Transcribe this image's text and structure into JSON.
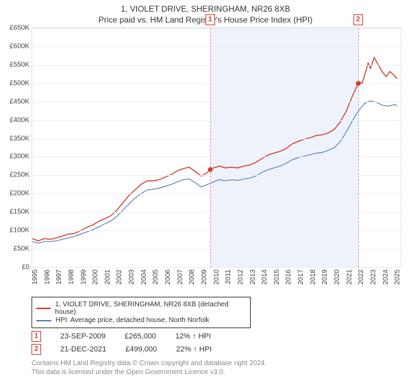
{
  "title": "1, VIOLET DRIVE, SHERINGHAM, NR26 8XB",
  "subtitle": "Price paid vs. HM Land Registry's House Price Index (HPI)",
  "chart": {
    "type": "line",
    "background_color": "#ffffff",
    "grid_color": "#eeeeee",
    "shade_color": "#eef3fb",
    "x_years": [
      1995,
      1996,
      1997,
      1998,
      1999,
      2000,
      2001,
      2002,
      2003,
      2004,
      2005,
      2006,
      2007,
      2008,
      2009,
      2010,
      2011,
      2012,
      2013,
      2014,
      2015,
      2016,
      2017,
      2018,
      2019,
      2020,
      2021,
      2022,
      2023,
      2024,
      2025
    ],
    "x_min": 1995,
    "x_max": 2025.5,
    "ylim": [
      0,
      650000
    ],
    "ytick_step": 50000,
    "ytick_labels": [
      "£0",
      "£50K",
      "£100K",
      "£150K",
      "£200K",
      "£250K",
      "£300K",
      "£350K",
      "£400K",
      "£450K",
      "£500K",
      "£550K",
      "£600K",
      "£650K"
    ],
    "series": [
      {
        "name": "price_paid",
        "label": "1, VIOLET DRIVE, SHERINGHAM, NR26 8XB (detached house)",
        "color": "#d43a2a",
        "line_width": 1.4,
        "points": [
          [
            1995,
            78000
          ],
          [
            1995.5,
            72000
          ],
          [
            1996,
            78000
          ],
          [
            1996.5,
            76000
          ],
          [
            1997,
            80000
          ],
          [
            1997.5,
            85000
          ],
          [
            1998,
            90000
          ],
          [
            1998.5,
            92000
          ],
          [
            1999,
            100000
          ],
          [
            1999.5,
            108000
          ],
          [
            2000,
            115000
          ],
          [
            2000.5,
            125000
          ],
          [
            2001,
            132000
          ],
          [
            2001.5,
            140000
          ],
          [
            2002,
            155000
          ],
          [
            2002.5,
            175000
          ],
          [
            2003,
            195000
          ],
          [
            2003.5,
            210000
          ],
          [
            2004,
            225000
          ],
          [
            2004.5,
            235000
          ],
          [
            2005,
            235000
          ],
          [
            2005.5,
            238000
          ],
          [
            2006,
            245000
          ],
          [
            2006.5,
            252000
          ],
          [
            2007,
            262000
          ],
          [
            2007.5,
            268000
          ],
          [
            2008,
            272000
          ],
          [
            2008.5,
            260000
          ],
          [
            2009,
            248000
          ],
          [
            2009.5,
            258000
          ],
          [
            2009.73,
            265000
          ],
          [
            2010,
            270000
          ],
          [
            2010.5,
            275000
          ],
          [
            2011,
            270000
          ],
          [
            2011.5,
            272000
          ],
          [
            2012,
            270000
          ],
          [
            2012.5,
            275000
          ],
          [
            2013,
            278000
          ],
          [
            2013.5,
            285000
          ],
          [
            2014,
            295000
          ],
          [
            2014.5,
            305000
          ],
          [
            2015,
            310000
          ],
          [
            2015.5,
            315000
          ],
          [
            2016,
            322000
          ],
          [
            2016.5,
            335000
          ],
          [
            2017,
            342000
          ],
          [
            2017.5,
            348000
          ],
          [
            2018,
            352000
          ],
          [
            2018.5,
            358000
          ],
          [
            2019,
            360000
          ],
          [
            2019.5,
            365000
          ],
          [
            2020,
            375000
          ],
          [
            2020.5,
            395000
          ],
          [
            2021,
            425000
          ],
          [
            2021.5,
            465000
          ],
          [
            2021.97,
            499000
          ],
          [
            2022,
            505000
          ],
          [
            2022.3,
            500000
          ],
          [
            2022.5,
            520000
          ],
          [
            2022.8,
            555000
          ],
          [
            2023,
            540000
          ],
          [
            2023.3,
            570000
          ],
          [
            2023.5,
            558000
          ],
          [
            2024,
            530000
          ],
          [
            2024.3,
            518000
          ],
          [
            2024.6,
            532000
          ],
          [
            2025,
            520000
          ],
          [
            2025.2,
            512000
          ]
        ]
      },
      {
        "name": "hpi",
        "label": "HPI: Average price, detached house, North Norfolk",
        "color": "#5a7fb5",
        "line_width": 1.2,
        "points": [
          [
            1995,
            70000
          ],
          [
            1995.5,
            66000
          ],
          [
            1996,
            70000
          ],
          [
            1996.5,
            70000
          ],
          [
            1997,
            72000
          ],
          [
            1997.5,
            76000
          ],
          [
            1998,
            80000
          ],
          [
            1998.5,
            84000
          ],
          [
            1999,
            90000
          ],
          [
            1999.5,
            96000
          ],
          [
            2000,
            102000
          ],
          [
            2000.5,
            110000
          ],
          [
            2001,
            118000
          ],
          [
            2001.5,
            126000
          ],
          [
            2002,
            138000
          ],
          [
            2002.5,
            155000
          ],
          [
            2003,
            172000
          ],
          [
            2003.5,
            188000
          ],
          [
            2004,
            200000
          ],
          [
            2004.5,
            210000
          ],
          [
            2005,
            212000
          ],
          [
            2005.5,
            215000
          ],
          [
            2006,
            220000
          ],
          [
            2006.5,
            225000
          ],
          [
            2007,
            232000
          ],
          [
            2007.5,
            238000
          ],
          [
            2008,
            240000
          ],
          [
            2008.5,
            230000
          ],
          [
            2009,
            218000
          ],
          [
            2009.5,
            225000
          ],
          [
            2010,
            232000
          ],
          [
            2010.5,
            238000
          ],
          [
            2011,
            235000
          ],
          [
            2011.5,
            238000
          ],
          [
            2012,
            236000
          ],
          [
            2012.5,
            240000
          ],
          [
            2013,
            242000
          ],
          [
            2013.5,
            248000
          ],
          [
            2014,
            258000
          ],
          [
            2014.5,
            265000
          ],
          [
            2015,
            270000
          ],
          [
            2015.5,
            275000
          ],
          [
            2016,
            282000
          ],
          [
            2016.5,
            292000
          ],
          [
            2017,
            298000
          ],
          [
            2017.5,
            302000
          ],
          [
            2018,
            306000
          ],
          [
            2018.5,
            310000
          ],
          [
            2019,
            312000
          ],
          [
            2019.5,
            318000
          ],
          [
            2020,
            325000
          ],
          [
            2020.5,
            342000
          ],
          [
            2021,
            368000
          ],
          [
            2021.5,
            398000
          ],
          [
            2022,
            425000
          ],
          [
            2022.5,
            445000
          ],
          [
            2023,
            452000
          ],
          [
            2023.5,
            448000
          ],
          [
            2024,
            440000
          ],
          [
            2024.5,
            438000
          ],
          [
            2025,
            442000
          ],
          [
            2025.2,
            440000
          ]
        ]
      }
    ],
    "markers": [
      {
        "n": "1",
        "x": 2009.73,
        "y": 265000,
        "dot_color": "#d43a2a"
      },
      {
        "n": "2",
        "x": 2021.97,
        "y": 499000,
        "dot_color": "#d43a2a"
      }
    ],
    "shade_ranges": [
      [
        2009.73,
        2021.97
      ]
    ]
  },
  "legend": {
    "border_color": "#333333"
  },
  "sales": [
    {
      "n": "1",
      "date": "23-SEP-2009",
      "price": "£265,000",
      "pct": "12% ↑ HPI"
    },
    {
      "n": "2",
      "date": "21-DEC-2021",
      "price": "£499,000",
      "pct": "22% ↑ HPI"
    }
  ],
  "attrib_line1": "Contains HM Land Registry data © Crown copyright and database right 2024.",
  "attrib_line2": "This data is licensed under the Open Government Licence v3.0.",
  "fontsize": {
    "title": 12,
    "subtitle": 12,
    "axis": 10,
    "legend": 10,
    "sales": 11,
    "attrib": 10
  }
}
